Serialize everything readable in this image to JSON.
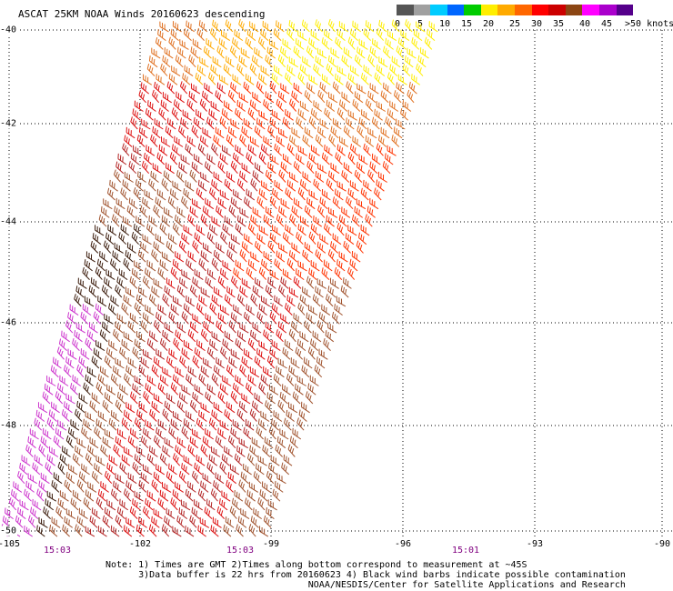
{
  "title": "ASCAT 25KM NOAA Winds 20160623 descending",
  "legend": {
    "colors": [
      "#555555",
      "#a0a0a0",
      "#00ccff",
      "#0066ff",
      "#00cc00",
      "#ffee00",
      "#ffaa00",
      "#ff6600",
      "#ff0000",
      "#cc0000",
      "#8b4513",
      "#ff00ff",
      "#aa00cc",
      "#55008b"
    ],
    "labels": [
      "0",
      "5",
      "10",
      "15",
      "20",
      "25",
      "30",
      "35",
      "40",
      "45",
      ">50 knots"
    ]
  },
  "axes": {
    "lon_labels": [
      "-105",
      "-102",
      "-99",
      "-96",
      "-93",
      "-90"
    ],
    "lat_labels": [
      "-40",
      "-42",
      "-44",
      "-46",
      "-48",
      "-50"
    ]
  },
  "times": [
    "15:03",
    "15:03",
    "15:01"
  ],
  "notes": [
    "Note: 1) Times are GMT 2)Times along bottom correspond to measurement at ~45S",
    "      3)Data buffer is 22 hrs from 20160623 4) Black wind barbs indicate possible contamination",
    "                                     NOAA/NESDIS/Center for Satellite Applications and Research"
  ],
  "swath": {
    "wind_color_bands": [
      "#ffee00",
      "#ffaa00",
      "#e07020",
      "#ff3300",
      "#dd1010",
      "#b22222",
      "#a0522d",
      "#3a1a0a",
      "#cc33cc"
    ]
  }
}
